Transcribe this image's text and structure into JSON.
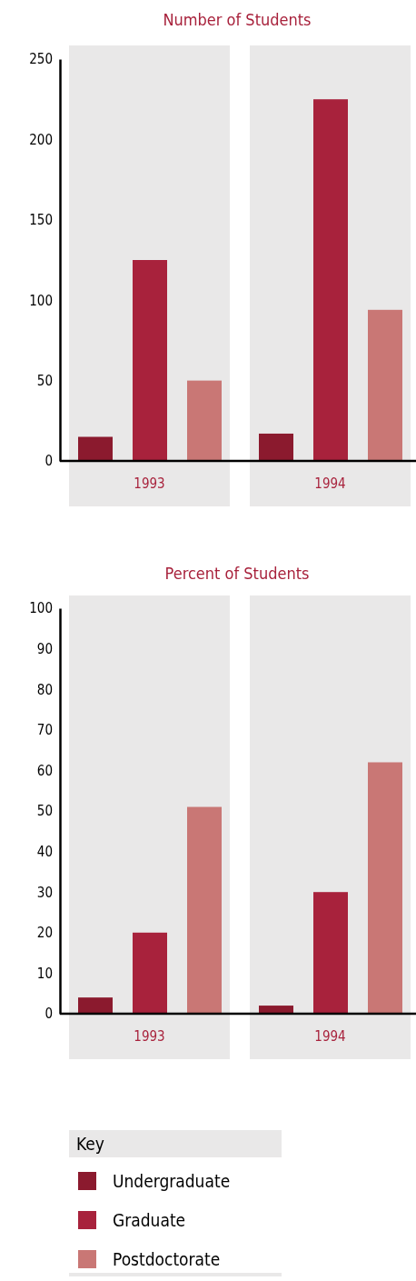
{
  "chart_data": [
    {
      "type": "bar",
      "title": "Number of Students",
      "categories": [
        "1993",
        "1994"
      ],
      "series": [
        {
          "color": "#8b1a2e",
          "values": [
            15,
            17
          ]
        },
        {
          "color": "#a8223c",
          "values": [
            125,
            225
          ]
        },
        {
          "color": "#c97775",
          "values": [
            50,
            94
          ]
        }
      ],
      "ylim": [
        0,
        250
      ],
      "yticks": [
        0,
        50,
        100,
        150,
        200,
        250
      ],
      "legend": false,
      "bands": [
        {
          "axis": "x",
          "from": "1993",
          "to": "1993",
          "color": "#e9e8e8"
        },
        {
          "axis": "x",
          "from": "1994",
          "to": "1994",
          "color": "#e9e8e8"
        }
      ]
    },
    {
      "type": "bar",
      "title": "Percent of Students",
      "categories": [
        "1993",
        "1994"
      ],
      "legend_title": "Key",
      "series": [
        {
          "name": "Undergraduate",
          "color": "#8b1a2e",
          "values": [
            4,
            2
          ]
        },
        {
          "name": "Graduate",
          "color": "#a8223c",
          "values": [
            20,
            30
          ]
        },
        {
          "name": "Postdoctorate",
          "color": "#c97775",
          "values": [
            51,
            62
          ]
        }
      ],
      "ylim": [
        0,
        100
      ],
      "yticks": [
        0,
        10,
        20,
        30,
        40,
        50,
        60,
        70,
        80,
        90,
        100
      ],
      "legend": "bottom",
      "bands": [
        {
          "axis": "x",
          "from": "1993",
          "to": "1993",
          "color": "#e9e8e8"
        },
        {
          "axis": "x",
          "from": "1994",
          "to": "1994",
          "color": "#e9e8e8"
        }
      ]
    }
  ]
}
